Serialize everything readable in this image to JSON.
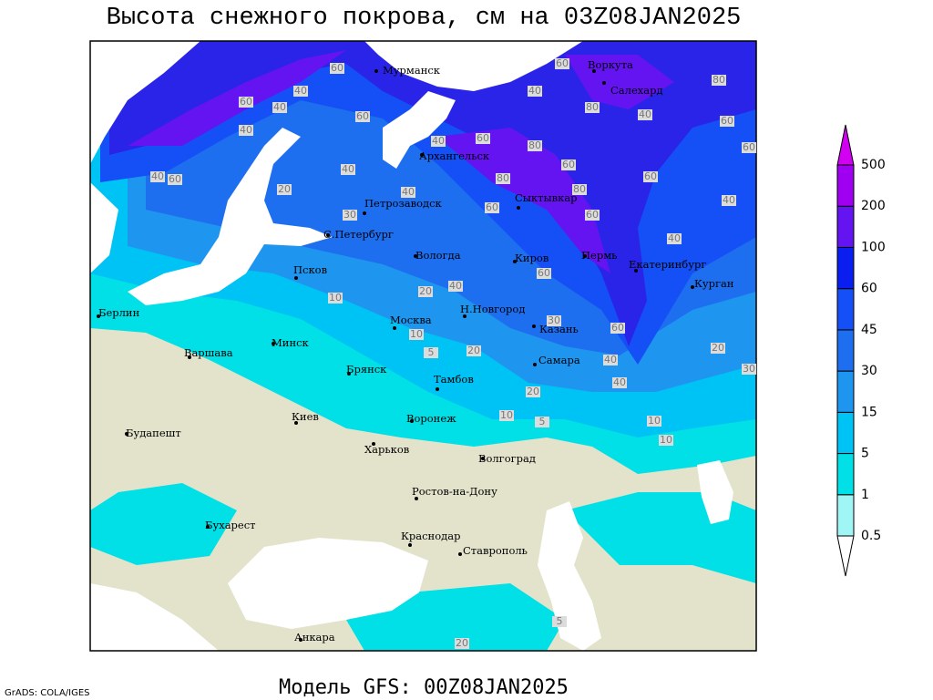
{
  "header": {
    "title": "Высота снежного покрова, см на 03Z08JAN2025"
  },
  "footer": {
    "model": "Модель GFS: 00Z08JAN2025",
    "credit": "GrADS: COLA/IGES"
  },
  "colorbar": {
    "levels": [
      0.5,
      1,
      5,
      15,
      30,
      45,
      60,
      100,
      200,
      500
    ],
    "colors": [
      "#ffffff",
      "#a0f5f5",
      "#00e0e6",
      "#00c3f5",
      "#1e96f0",
      "#1e6ef0",
      "#1450f5",
      "#0a1ef0",
      "#6414f0",
      "#a000f0",
      "#d200f0"
    ]
  },
  "map": {
    "cities": [
      "Мурманск",
      "Воркута",
      "Салехард",
      "Архангельск",
      "Сыктывкар",
      "Петрозаводск",
      "С.Петербург",
      "Вологда",
      "Киров",
      "Пермь",
      "Екатеринбург",
      "Курган",
      "Псков",
      "Н.Новгород",
      "Казань",
      "Берлин",
      "Минск",
      "Москва",
      "Варшава",
      "Брянск",
      "Тамбов",
      "Самара",
      "Киев",
      "Воронеж",
      "Будапешт",
      "Харьков",
      "Волгоград",
      "Ростов-на-Дону",
      "Бухарест",
      "Краснодар",
      "Ставрополь",
      "Анкара"
    ],
    "contour_labels": [
      60,
      40,
      60,
      40,
      40,
      60,
      40,
      60,
      20,
      40,
      30,
      40,
      40,
      60,
      80,
      60,
      80,
      60,
      80,
      60,
      40,
      60,
      80,
      40,
      60,
      80,
      60,
      40,
      40,
      60,
      20,
      40,
      10,
      60,
      60,
      40,
      30,
      20,
      5,
      10,
      20,
      10,
      10,
      10,
      20,
      30,
      40,
      5,
      20,
      5
    ]
  }
}
